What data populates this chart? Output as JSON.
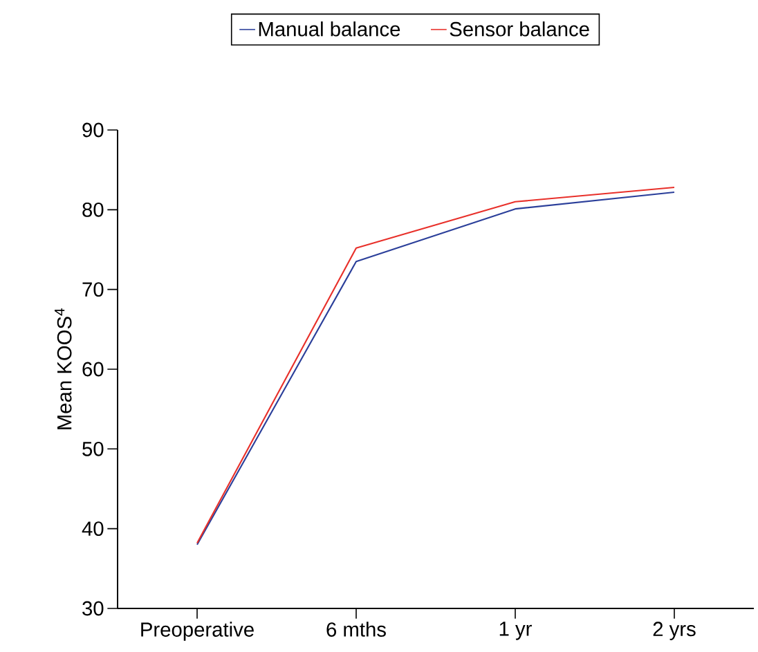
{
  "chart_data": {
    "type": "line",
    "ylabel": "Mean KOOS$^{4}$",
    "categories": [
      "Preoperative",
      "6 mths",
      "1 yr",
      "2 yrs"
    ],
    "series": [
      {
        "name": "Manual balance",
        "color": "#2b3f9a",
        "values": [
          38,
          73.5,
          80.1,
          82.2
        ]
      },
      {
        "name": "Sensor balance",
        "color": "#e8302a",
        "values": [
          38.2,
          75.2,
          81.0,
          82.8
        ]
      }
    ],
    "ylim": [
      30,
      90
    ],
    "yticks": [
      30,
      40,
      50,
      60,
      70,
      80,
      90
    ],
    "grid": false,
    "legend": "top",
    "marker": "none",
    "line_style": "solid"
  }
}
